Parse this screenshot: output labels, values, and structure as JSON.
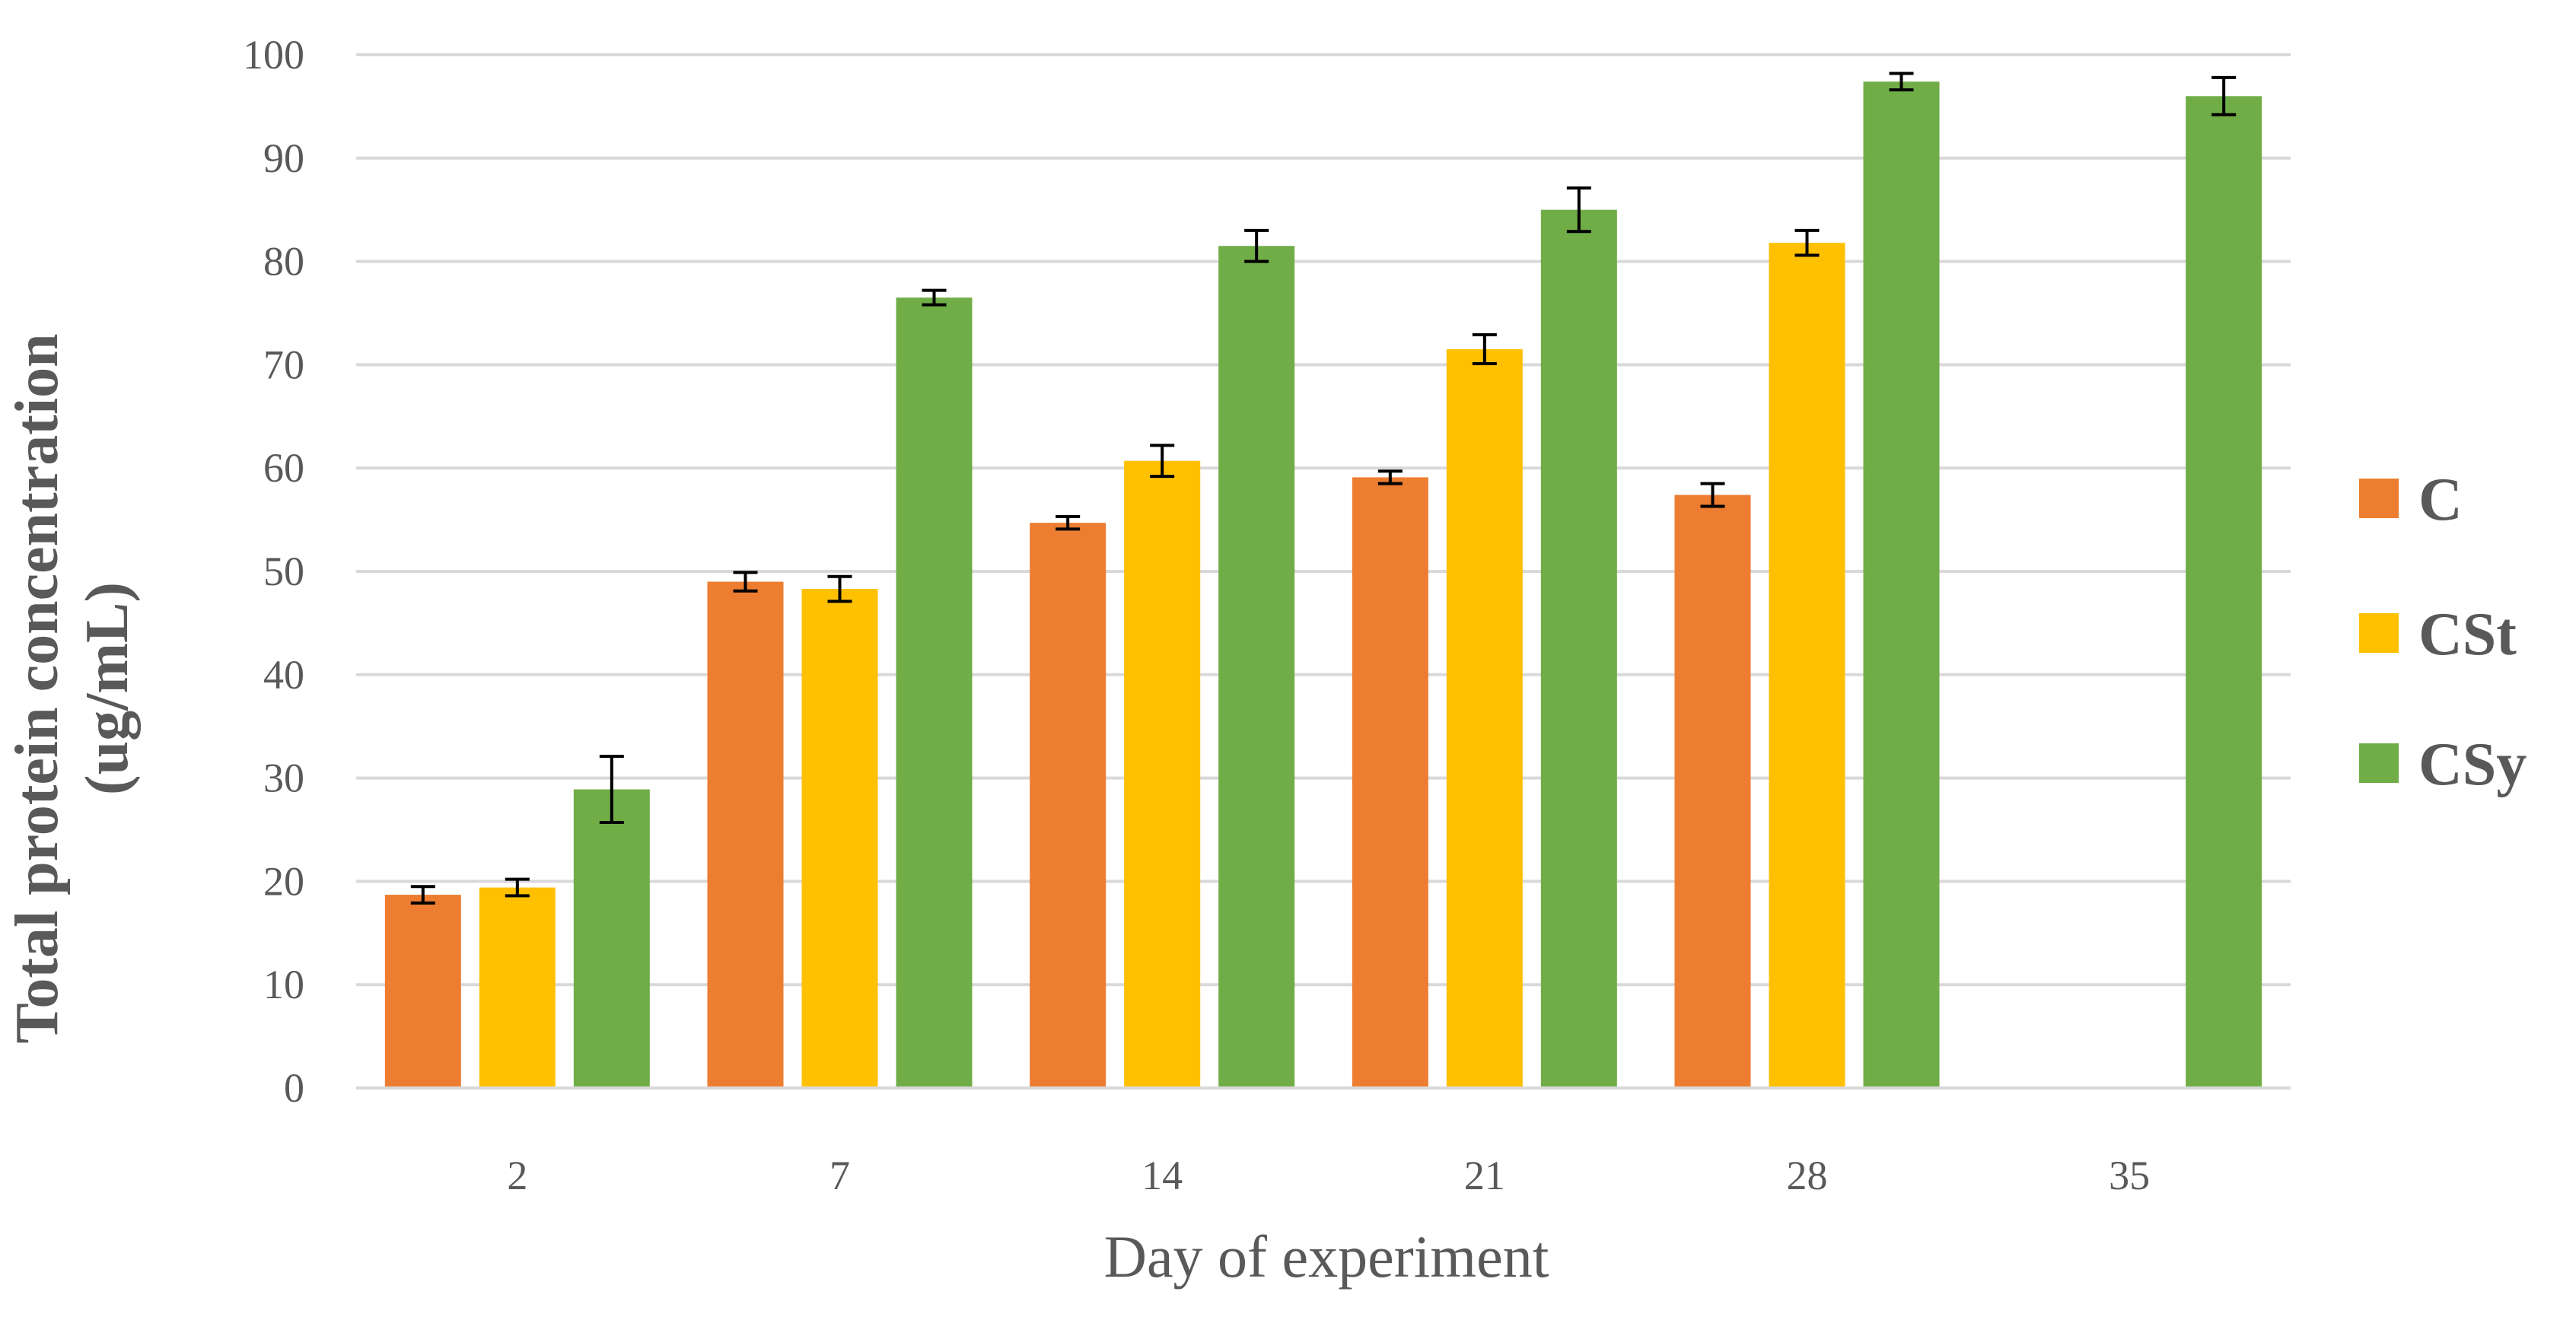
{
  "chart_data": {
    "type": "bar",
    "title": "",
    "xlabel": "Day of experiment",
    "ylabel_lines": [
      "Total protein concentration",
      "(ug/mL)"
    ],
    "categories": [
      "2",
      "7",
      "14",
      "21",
      "28",
      "35"
    ],
    "ylim": [
      0,
      100
    ],
    "yticks": [
      "0",
      "10",
      "20",
      "30",
      "40",
      "50",
      "60",
      "70",
      "80",
      "90",
      "100"
    ],
    "grid": true,
    "legend_position": "right",
    "series": [
      {
        "name": "C",
        "color": "#ED7D31",
        "values": [
          18.7,
          49.0,
          54.7,
          59.1,
          57.4,
          null
        ],
        "errors": [
          0.8,
          0.9,
          0.6,
          0.6,
          1.1,
          null
        ]
      },
      {
        "name": "CSt",
        "color": "#FFC000",
        "values": [
          19.4,
          48.3,
          60.7,
          71.5,
          81.8,
          null
        ],
        "errors": [
          0.8,
          1.2,
          1.5,
          1.4,
          1.2,
          null
        ]
      },
      {
        "name": "CSy",
        "color": "#70AD47",
        "values": [
          28.9,
          76.5,
          81.5,
          85.0,
          97.4,
          96.0
        ],
        "errors": [
          3.2,
          0.7,
          1.5,
          2.1,
          0.8,
          1.8
        ]
      }
    ]
  }
}
